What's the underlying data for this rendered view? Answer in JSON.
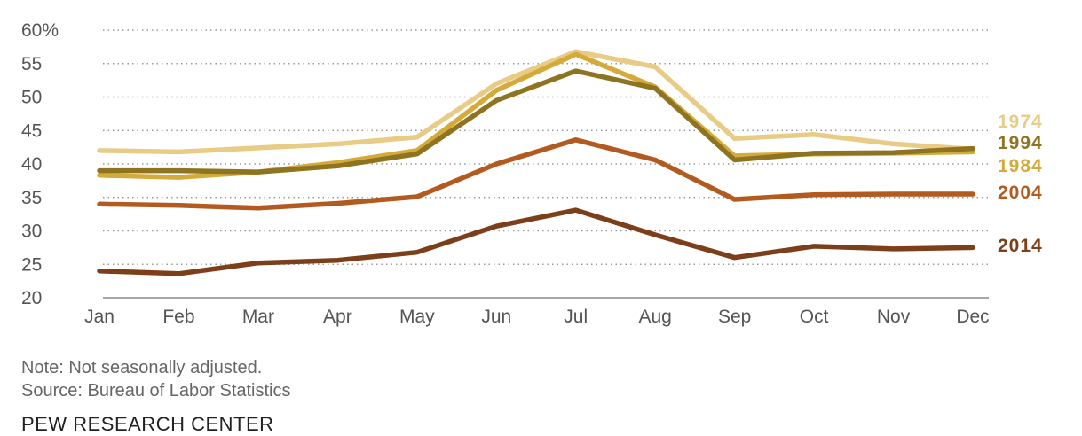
{
  "chart_data": {
    "type": "line",
    "categories": [
      "Jan",
      "Feb",
      "Mar",
      "Apr",
      "May",
      "Jun",
      "Jul",
      "Aug",
      "Sep",
      "Oct",
      "Nov",
      "Dec"
    ],
    "y_ticks": [
      "60%",
      "55",
      "50",
      "45",
      "40",
      "35",
      "30",
      "25",
      "20"
    ],
    "ylim": [
      20,
      60
    ],
    "grid": true,
    "legend": "inline labels at right end of each line",
    "series": [
      {
        "name": "1974",
        "color": "#e8cc85",
        "values": [
          42.0,
          41.8,
          42.4,
          43.0,
          44.0,
          52.0,
          56.8,
          54.5,
          43.8,
          44.4,
          43.0,
          42.2
        ]
      },
      {
        "name": "1984",
        "color": "#d4ab3a",
        "values": [
          38.3,
          38.0,
          38.8,
          40.2,
          42.0,
          51.0,
          56.4,
          51.5,
          41.2,
          41.5,
          41.6,
          41.8
        ]
      },
      {
        "name": "1994",
        "color": "#8e7420",
        "values": [
          39.0,
          39.0,
          38.8,
          39.7,
          41.5,
          49.5,
          53.9,
          51.3,
          40.6,
          41.6,
          41.7,
          42.3
        ]
      },
      {
        "name": "2004",
        "color": "#b35a20",
        "values": [
          34.0,
          33.8,
          33.4,
          34.1,
          35.1,
          40.0,
          43.6,
          40.6,
          34.7,
          35.4,
          35.5,
          35.5
        ]
      },
      {
        "name": "2014",
        "color": "#7c3f1a",
        "values": [
          24.0,
          23.6,
          25.2,
          25.6,
          26.8,
          30.7,
          33.1,
          29.4,
          26.0,
          27.7,
          27.3,
          27.5
        ]
      }
    ],
    "note": "Note: Not seasonally adjusted.",
    "source": "Source: Bureau of Labor Statistics",
    "branding": "PEW RESEARCH CENTER"
  }
}
